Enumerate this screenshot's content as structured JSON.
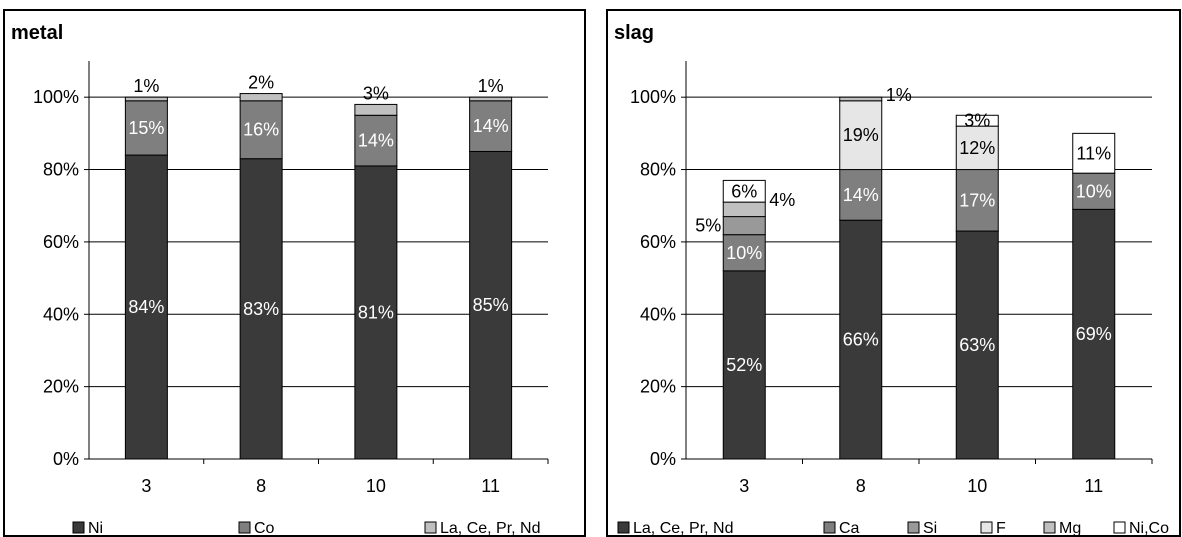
{
  "chart_data": [
    {
      "type": "bar",
      "stacked": true,
      "title": "metal",
      "categories": [
        "3",
        "8",
        "10",
        "11"
      ],
      "ylim": [
        0,
        110
      ],
      "yticks": [
        "0%",
        "20%",
        "40%",
        "60%",
        "80%",
        "100%"
      ],
      "grid": true,
      "legend_position": "bottom",
      "series": [
        {
          "name": "Ni",
          "values": [
            84,
            83,
            81,
            85
          ],
          "color": "#3a3a3a",
          "labels": [
            "84%",
            "83%",
            "81%",
            "85%"
          ]
        },
        {
          "name": "Co",
          "values": [
            15,
            16,
            14,
            14
          ],
          "color": "#7f7f7f",
          "labels": [
            "15%",
            "16%",
            "14%",
            "14%"
          ]
        },
        {
          "name": "La, Ce, Pr, Nd",
          "values": [
            1,
            2,
            3,
            1
          ],
          "color": "#c0c0c0",
          "labels": [
            "1%",
            "2%",
            "3%",
            "1%"
          ]
        }
      ]
    },
    {
      "type": "bar",
      "stacked": true,
      "title": "slag",
      "categories": [
        "3",
        "8",
        "10",
        "11"
      ],
      "ylim": [
        0,
        110
      ],
      "yticks": [
        "0%",
        "20%",
        "40%",
        "60%",
        "80%",
        "100%"
      ],
      "grid": true,
      "legend_position": "bottom",
      "series": [
        {
          "name": "La, Ce, Pr, Nd",
          "values": [
            52,
            66,
            63,
            69
          ],
          "color": "#3a3a3a",
          "labels": [
            "52%",
            "66%",
            "63%",
            "69%"
          ]
        },
        {
          "name": "Ca",
          "values": [
            10,
            14,
            17,
            10
          ],
          "color": "#7f7f7f",
          "labels": [
            "10%",
            "14%",
            "17%",
            "10%"
          ]
        },
        {
          "name": "Si",
          "values": [
            5,
            0,
            0,
            0
          ],
          "color": "#999999",
          "labels": [
            "5%",
            "",
            "",
            ""
          ]
        },
        {
          "name": "F",
          "values": [
            0,
            19,
            12,
            0
          ],
          "color": "#e6e6e6",
          "labels": [
            "",
            "19%",
            "12%",
            ""
          ]
        },
        {
          "name": "Mg",
          "values": [
            4,
            1,
            0,
            0
          ],
          "color": "#c0c0c0",
          "labels": [
            "4%",
            "1%",
            "",
            ""
          ]
        },
        {
          "name": "Ni,Co",
          "values": [
            6,
            0,
            3,
            11
          ],
          "color": "#ffffff",
          "labels": [
            "6%",
            "",
            "3%",
            "11%"
          ]
        }
      ]
    }
  ]
}
